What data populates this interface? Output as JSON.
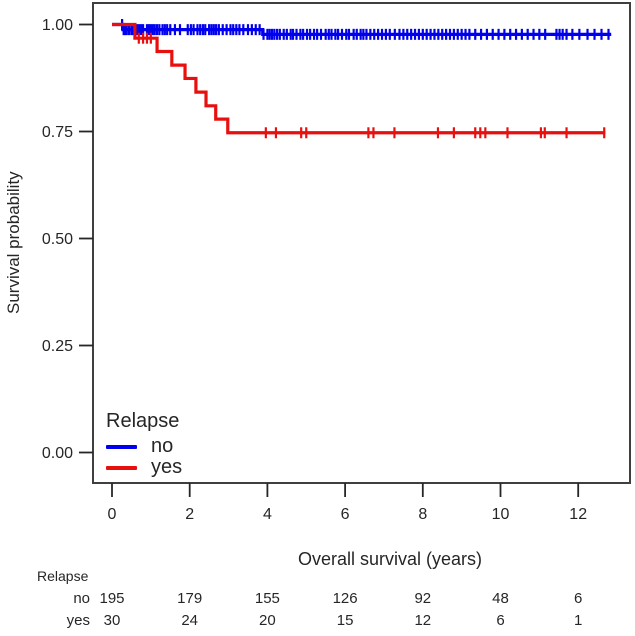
{
  "figure": {
    "background": "#ffffff",
    "text_color": "#262626",
    "axis_color": "#3f3f3f"
  },
  "chart_data": {
    "type": "line",
    "subtype": "kaplan-meier-step",
    "title": "",
    "xlabel": "Overall survival (years)",
    "ylabel": "Survival probability",
    "xticks": [
      0,
      2,
      4,
      6,
      8,
      10,
      12
    ],
    "ytick_labels": [
      "1.00",
      "0.75",
      "0.50",
      "0.25",
      "0.00"
    ],
    "ytick_values": [
      1.0,
      0.75,
      0.5,
      0.25,
      0.0
    ],
    "xlim": [
      -0.55,
      13.4
    ],
    "ylim": [
      -0.07,
      1.05
    ],
    "grid": false,
    "legend": {
      "title": "Relapse",
      "position": "bottom-left-inside",
      "items": [
        {
          "label": "no",
          "color": "#0000EE"
        },
        {
          "label": "yes",
          "color": "#E8100E"
        }
      ]
    },
    "series": [
      {
        "name": "no",
        "color": "#0000EE",
        "steps": [
          [
            0,
            1.0
          ],
          [
            0.28,
            0.988
          ],
          [
            3.88,
            0.977
          ]
        ],
        "end_year": 12.85,
        "censor_years": [
          0.26,
          0.3,
          0.34,
          0.38,
          0.44,
          0.5,
          0.55,
          0.6,
          0.65,
          0.7,
          0.75,
          0.8,
          0.9,
          0.95,
          1.0,
          1.05,
          1.1,
          1.16,
          1.22,
          1.3,
          1.36,
          1.42,
          1.5,
          1.62,
          1.75,
          1.95,
          2.03,
          2.1,
          2.2,
          2.27,
          2.34,
          2.4,
          2.5,
          2.56,
          2.62,
          2.68,
          2.75,
          2.85,
          2.95,
          3.05,
          3.12,
          3.2,
          3.28,
          3.38,
          3.5,
          3.6,
          3.7,
          3.8,
          3.9,
          4.0,
          4.06,
          4.12,
          4.18,
          4.25,
          4.32,
          4.42,
          4.5,
          4.6,
          4.66,
          4.75,
          4.85,
          4.92,
          5.02,
          5.1,
          5.2,
          5.28,
          5.38,
          5.5,
          5.58,
          5.65,
          5.75,
          5.82,
          5.92,
          6.03,
          6.1,
          6.22,
          6.3,
          6.4,
          6.47,
          6.55,
          6.65,
          6.75,
          6.85,
          6.95,
          7.05,
          7.15,
          7.28,
          7.4,
          7.5,
          7.6,
          7.7,
          7.8,
          7.9,
          8.0,
          8.1,
          8.2,
          8.3,
          8.4,
          8.5,
          8.6,
          8.7,
          8.8,
          8.9,
          9.0,
          9.1,
          9.2,
          9.35,
          9.5,
          9.65,
          9.8,
          9.95,
          10.1,
          10.25,
          10.4,
          10.55,
          10.7,
          10.85,
          11.0,
          11.15,
          11.44,
          11.52,
          11.6,
          11.7,
          11.85,
          12.03,
          12.24,
          12.42,
          12.6,
          12.78
        ]
      },
      {
        "name": "yes",
        "color": "#E8100E",
        "steps": [
          [
            0,
            1.0
          ],
          [
            0.59,
            0.968
          ],
          [
            1.16,
            0.937
          ],
          [
            1.54,
            0.905
          ],
          [
            1.88,
            0.874
          ],
          [
            2.16,
            0.842
          ],
          [
            2.42,
            0.81
          ],
          [
            2.67,
            0.779
          ],
          [
            2.98,
            0.747
          ]
        ],
        "end_year": 12.7,
        "censor_years": [
          0.69,
          0.8,
          0.9,
          1.0,
          3.96,
          4.22,
          4.87,
          5.0,
          6.6,
          6.73,
          7.27,
          8.39,
          8.8,
          9.35,
          9.48,
          9.61,
          10.18,
          11.04,
          11.14,
          11.7,
          12.67
        ]
      }
    ],
    "risk_table": {
      "header": "Relapse",
      "times": [
        0,
        2,
        4,
        6,
        8,
        10,
        12
      ],
      "rows": [
        {
          "label": "no",
          "values": [
            195,
            179,
            155,
            126,
            92,
            48,
            6
          ]
        },
        {
          "label": "yes",
          "values": [
            30,
            24,
            20,
            15,
            12,
            6,
            1
          ]
        }
      ]
    }
  }
}
